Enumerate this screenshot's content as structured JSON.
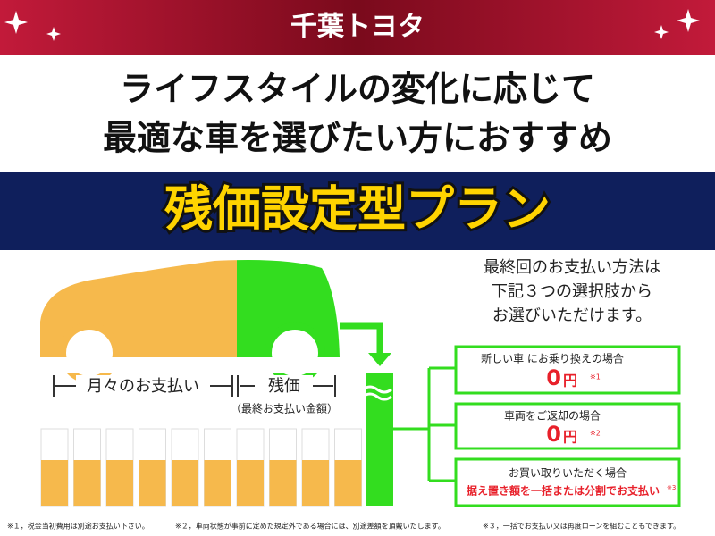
{
  "header": {
    "brand": "千葉トヨタ"
  },
  "headline": {
    "lines": [
      "ライフスタイルの変化に応じて",
      "最適な車を選びたい方におすすめ"
    ]
  },
  "banner": {
    "title": "残価設定型プラン"
  },
  "diagram": {
    "monthly_label": "月々のお支払い",
    "residual_label": "残価",
    "residual_sub": "（最終お支払い金額）"
  },
  "intro": {
    "lines": [
      "最終回のお支払い方法は",
      "下記３つの選択肢から",
      "お選びいただけます。"
    ]
  },
  "options": [
    {
      "title": "新しい車 にお乗り換えの場合",
      "amount": 0,
      "unit": "円",
      "note": "※1"
    },
    {
      "title": "車両をご返却の場合",
      "amount": 0,
      "unit": "円",
      "note": "※2"
    },
    {
      "title": "お買い取りいただく場合",
      "detail": "据え置き額を一括または分割でお支払い",
      "note": "※3"
    }
  ],
  "footnotes": [
    "※１，税金当初費用は別途お支払い下さい。",
    "※２，車両状態が事前に定めた規定外である場合には、別途差額を頂戴いたします。",
    "※３，一括でお支払い又は再度ローンを組むこともできます。"
  ]
}
